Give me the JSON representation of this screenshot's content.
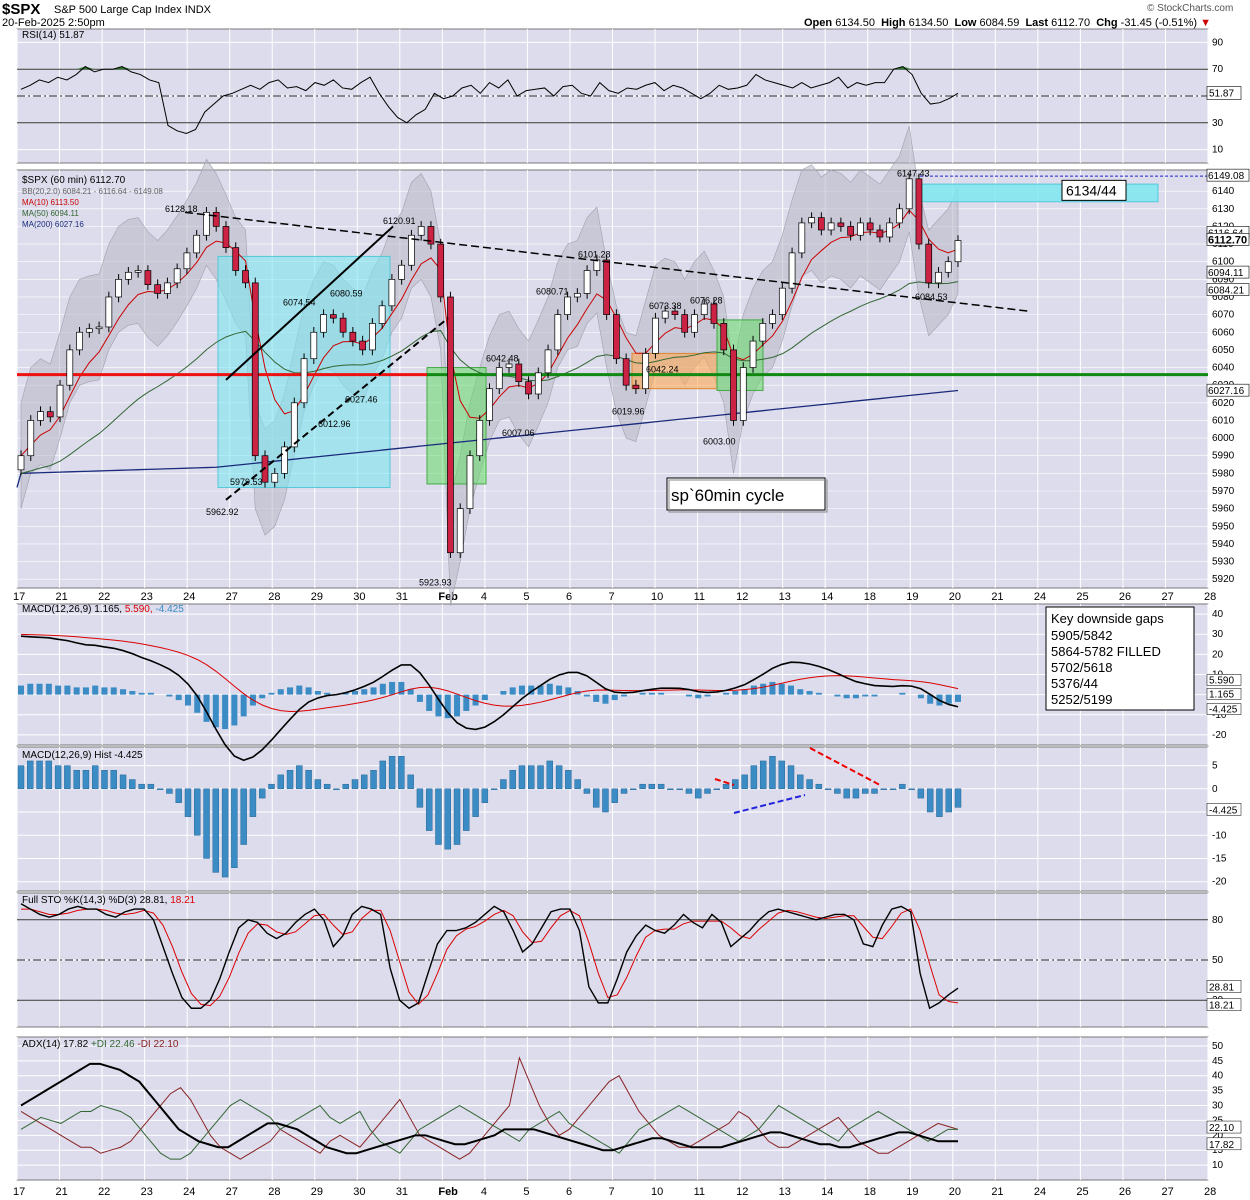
{
  "header": {
    "symbol": "$SPX",
    "name": "S&P 500 Large Cap Index",
    "exchange": "INDX",
    "timestamp": "20-Feb-2025 2:50pm",
    "open_label": "Open",
    "open": "6134.50",
    "high_label": "High",
    "high": "6134.50",
    "low_label": "Low",
    "low": "6084.59",
    "last_label": "Last",
    "last": "6112.70",
    "chg_label": "Chg",
    "chg": "-31.45 (-0.51%)",
    "watermark": "© StockCharts.com"
  },
  "colors": {
    "panel_bg": "#dcdcec",
    "grid": "#ffffff",
    "candle_up": "#ffffff",
    "candle_down": "#cc2244",
    "rsi_line": "#000000",
    "rsi_fill": "#2f7a2f",
    "ma10": "#cc0000",
    "ma50": "#336633",
    "ma200": "#1a2a7a",
    "bb_fill": "#b8b8c6",
    "red_level": "#ee1111",
    "green_level": "#118811",
    "box_cyan": "#7ee8f0",
    "box_green": "#66dd66",
    "box_orange": "#ffaa55",
    "macd_hist": "#3b8cc4",
    "sto_k": "#000000",
    "sto_d": "#dd0000",
    "adx": "#000000",
    "plus_di": "#336633",
    "minus_di": "#882222"
  },
  "xaxis": {
    "labels": [
      "17",
      "21",
      "22",
      "23",
      "24",
      "27",
      "28",
      "29",
      "30",
      "31",
      "Feb",
      "4",
      "5",
      "6",
      "7",
      "10",
      "11",
      "12",
      "13",
      "14",
      "18",
      "19",
      "20",
      "21",
      "24",
      "25",
      "26",
      "27",
      "28"
    ]
  },
  "panels": {
    "rsi": {
      "legend_name": "RSI(14)",
      "legend_value": "51.87",
      "ticks": [
        "90",
        "70",
        "50",
        "30",
        "10"
      ],
      "last_value": "51.87",
      "series": [
        55,
        58,
        62,
        60,
        64,
        62,
        66,
        72,
        68,
        70,
        70,
        72,
        68,
        66,
        62,
        60,
        28,
        24,
        22,
        25,
        38,
        44,
        50,
        52,
        55,
        58,
        55,
        60,
        62,
        56,
        57,
        54,
        60,
        58,
        62,
        56,
        55,
        60,
        64,
        52,
        42,
        34,
        30,
        36,
        40,
        52,
        48,
        50,
        56,
        58,
        52,
        60,
        56,
        62,
        50,
        54,
        55,
        56,
        50,
        57,
        58,
        52,
        50,
        60,
        54,
        52,
        56,
        55,
        58,
        60,
        54,
        58,
        56,
        52,
        48,
        52,
        58,
        55,
        56,
        58,
        66,
        62,
        60,
        58,
        56,
        60,
        56,
        58,
        60,
        64,
        56,
        60,
        58,
        60,
        60,
        70,
        72,
        66,
        52,
        44,
        45,
        48,
        52
      ]
    },
    "price": {
      "legend_name": "$SPX (60 min)",
      "legend_value": "6112.70",
      "bb_label": "BB(20,2.0)",
      "bb_values": "6084.21 - 6116.64 - 6149.08",
      "ma10_label": "MA(10)",
      "ma10_value": "6113.50",
      "ma50_label": "MA(50)",
      "ma50_value": "6094.11",
      "ma200_label": "MA(200)",
      "ma200_value": "6027.16",
      "ticks": [
        "6140",
        "6130",
        "6120",
        "6110",
        "6100",
        "6090",
        "6080",
        "6070",
        "6060",
        "6050",
        "6040",
        "6030",
        "6020",
        "6010",
        "6000",
        "5990",
        "5980",
        "5970",
        "5960",
        "5950",
        "5940",
        "5930",
        "5920"
      ],
      "right_labels": [
        "6149.08",
        "6116.64",
        "6112.70",
        "6094.11",
        "6084.21",
        "6027.16"
      ],
      "annotations": [
        "6128.18",
        "6120.91",
        "6101.28",
        "6080.71",
        "6073.38",
        "6076.28",
        "6147.43",
        "6074.54",
        "6080.59",
        "6027.46",
        "6012.96",
        "6042.48",
        "6007.06",
        "6019.96",
        "6042.24",
        "6003.00",
        "5979.53",
        "5962.92",
        "5923.93",
        "6084.53"
      ],
      "target_label": "6134/44",
      "cycle_label": "sp`60min cycle",
      "levels": {
        "red": 6036,
        "green": 6036
      }
    },
    "macd": {
      "legend_name": "MACD(12,26,9)",
      "legend_values": [
        "1.165",
        "5.590",
        "-4.425"
      ],
      "ticks": [
        "40",
        "30",
        "20",
        "10",
        "0",
        "-10",
        "-20"
      ],
      "right_labels": [
        "5.590",
        "1.165",
        "-4.425"
      ],
      "gaps_title": "Key downside gaps",
      "gaps": [
        "5905/5842",
        "5864-5782 FILLED",
        "5702/5618",
        "5376/44",
        "5252/5199"
      ]
    },
    "hist": {
      "legend_name": "MACD(12,26,9) Hist",
      "legend_value": "-4.425",
      "ticks": [
        "5",
        "0",
        "-5",
        "-10",
        "-15",
        "-20"
      ],
      "right_label": "-4.425",
      "values": [
        5,
        6,
        6,
        6,
        5,
        5,
        4,
        4,
        5,
        4,
        4,
        3,
        2,
        1,
        1,
        0,
        -1,
        -3,
        -6,
        -10,
        -15,
        -18,
        -19,
        -17,
        -12,
        -6,
        -2,
        1,
        3,
        4,
        5,
        4,
        2,
        1,
        0,
        1,
        2,
        3,
        4,
        6,
        7,
        7,
        3,
        -4,
        -9,
        -12,
        -13,
        -12,
        -9,
        -6,
        -3,
        0,
        2,
        4,
        5,
        5,
        5,
        6,
        5,
        4,
        2,
        -1,
        -4,
        -5,
        -3,
        -1,
        0,
        1,
        1,
        1,
        0,
        0,
        -1,
        -2,
        -1,
        0,
        1,
        2,
        3,
        5,
        6,
        7,
        6,
        5,
        3,
        2,
        1,
        0,
        -1,
        -2,
        -2,
        -1,
        -1,
        0,
        0,
        1,
        0,
        -2,
        -5,
        -6,
        -5,
        -4
      ]
    },
    "sto": {
      "legend_name": "Full STO %K(14,3) %D(3)",
      "legend_values": [
        "28.81",
        "18.21"
      ],
      "ticks": [
        "80",
        "50",
        "20"
      ],
      "right_labels": [
        "28.81",
        "18.21"
      ],
      "k": [
        92,
        88,
        84,
        82,
        84,
        88,
        90,
        88,
        88,
        84,
        82,
        86,
        88,
        88,
        80,
        60,
        40,
        22,
        14,
        14,
        20,
        36,
        56,
        74,
        80,
        78,
        70,
        66,
        70,
        78,
        84,
        88,
        80,
        60,
        68,
        84,
        90,
        88,
        84,
        44,
        20,
        14,
        18,
        40,
        62,
        72,
        72,
        74,
        78,
        84,
        90,
        86,
        72,
        56,
        62,
        74,
        86,
        88,
        88,
        72,
        30,
        18,
        18,
        36,
        56,
        68,
        76,
        72,
        70,
        76,
        84,
        78,
        74,
        84,
        78,
        60,
        66,
        72,
        80,
        86,
        88,
        86,
        84,
        82,
        80,
        82,
        84,
        84,
        80,
        62,
        60,
        76,
        88,
        90,
        86,
        40,
        14,
        18,
        24,
        29
      ],
      "d": [
        88,
        88,
        86,
        84,
        84,
        85,
        87,
        88,
        88,
        87,
        85,
        84,
        85,
        87,
        85,
        76,
        60,
        41,
        25,
        17,
        16,
        23,
        37,
        55,
        70,
        77,
        76,
        71,
        69,
        71,
        77,
        83,
        84,
        76,
        69,
        71,
        81,
        87,
        87,
        72,
        49,
        26,
        17,
        24,
        40,
        58,
        68,
        73,
        75,
        79,
        84,
        87,
        83,
        71,
        63,
        64,
        74,
        83,
        87,
        83,
        63,
        40,
        22,
        24,
        37,
        53,
        67,
        72,
        73,
        73,
        77,
        79,
        79,
        79,
        79,
        74,
        68,
        66,
        73,
        79,
        85,
        87,
        86,
        84,
        82,
        81,
        82,
        83,
        83,
        75,
        67,
        66,
        75,
        85,
        88,
        72,
        47,
        24,
        19,
        18
      ]
    },
    "adx": {
      "legend_name": "ADX(14)",
      "legend_values": [
        "17.82",
        "22.46",
        "22.10"
      ],
      "plus_di_label": "+DI",
      "minus_di_label": "-DI",
      "ticks": [
        "50",
        "45",
        "40",
        "35",
        "30",
        "25",
        "20",
        "15",
        "10"
      ],
      "right_labels": [
        "22.10",
        "17.82"
      ],
      "adx": [
        30,
        32,
        34,
        36,
        38,
        40,
        42,
        44,
        44,
        43,
        42,
        40,
        38,
        34,
        30,
        26,
        22,
        20,
        18,
        17,
        16,
        16,
        18,
        20,
        22,
        24,
        24,
        23,
        22,
        20,
        18,
        16,
        15,
        14,
        14,
        15,
        16,
        17,
        18,
        19,
        20,
        20,
        19,
        18,
        17,
        17,
        18,
        19,
        20,
        22,
        22,
        22,
        22,
        21,
        20,
        19,
        18,
        17,
        16,
        15,
        15,
        16,
        17,
        18,
        19,
        19,
        18,
        17,
        16,
        16,
        16,
        16,
        17,
        18,
        19,
        20,
        21,
        21,
        20,
        19,
        18,
        17,
        17,
        16,
        16,
        17,
        18,
        19,
        20,
        21,
        21,
        20,
        19,
        18,
        18,
        18
      ],
      "plus_di": [
        22,
        24,
        26,
        25,
        24,
        26,
        28,
        28,
        30,
        29,
        28,
        26,
        22,
        18,
        14,
        12,
        12,
        14,
        18,
        22,
        26,
        30,
        32,
        30,
        28,
        26,
        22,
        24,
        26,
        28,
        30,
        26,
        24,
        26,
        28,
        22,
        18,
        16,
        14,
        18,
        22,
        24,
        26,
        28,
        30,
        28,
        26,
        24,
        22,
        20,
        18,
        22,
        24,
        26,
        28,
        24,
        22,
        20,
        18,
        16,
        14,
        18,
        22,
        24,
        26,
        28,
        30,
        28,
        26,
        24,
        22,
        20,
        18,
        20,
        22,
        26,
        30,
        28,
        26,
        24,
        22,
        20,
        18,
        22,
        24,
        26,
        28,
        26,
        24,
        22,
        20,
        18,
        20,
        22,
        22
      ],
      "minus_di": [
        28,
        26,
        24,
        22,
        20,
        18,
        16,
        16,
        14,
        15,
        16,
        18,
        22,
        26,
        30,
        34,
        36,
        32,
        26,
        20,
        16,
        14,
        12,
        14,
        16,
        18,
        22,
        20,
        18,
        16,
        14,
        18,
        20,
        18,
        16,
        20,
        24,
        28,
        32,
        26,
        20,
        18,
        16,
        14,
        12,
        14,
        18,
        22,
        26,
        30,
        46,
        38,
        30,
        24,
        20,
        22,
        26,
        30,
        34,
        38,
        40,
        34,
        28,
        24,
        20,
        18,
        16,
        16,
        18,
        20,
        22,
        24,
        28,
        26,
        22,
        18,
        16,
        16,
        18,
        20,
        22,
        24,
        26,
        22,
        18,
        16,
        14,
        14,
        16,
        18,
        20,
        22,
        24,
        23,
        22
      ]
    }
  },
  "chart_data": [
    {
      "type": "candlestick",
      "title": "$SPX (60 min)",
      "x_range": [
        "17",
        "28"
      ],
      "ylim": [
        5915,
        6150
      ],
      "close": [
        5990,
        6010,
        6015,
        6012,
        6030,
        6050,
        6060,
        6062,
        6063,
        6080,
        6090,
        6094,
        6095,
        6087,
        6082,
        6088,
        6096,
        6105,
        6115,
        6128,
        6120,
        6108,
        6095,
        6088,
        5990,
        5975,
        5980,
        5995,
        6020,
        6045,
        6060,
        6070,
        6068,
        6060,
        6055,
        6050,
        6065,
        6075,
        6090,
        6098,
        6115,
        6120,
        6110,
        6080,
        5935,
        5960,
        5990,
        6010,
        6028,
        6040,
        6042,
        6032,
        6025,
        6037,
        6050,
        6070,
        6080,
        6082,
        6095,
        6101,
        6070,
        6045,
        6030,
        6028,
        6048,
        6068,
        6072,
        6070,
        6060,
        6070,
        6076,
        6065,
        6050,
        6010,
        6040,
        6055,
        6065,
        6070,
        6085,
        6105,
        6122,
        6125,
        6118,
        6122,
        6120,
        6115,
        6122,
        6118,
        6114,
        6122,
        6130,
        6147,
        6110,
        6088,
        6094,
        6100,
        6112
      ],
      "levels": {
        "hline_red": 6036,
        "hline_green": 6036
      },
      "target_zone": [
        6134,
        6144
      ]
    },
    {
      "type": "line",
      "title": "RSI(14)",
      "ylim": [
        0,
        100
      ],
      "last": 51.87
    },
    {
      "type": "bar",
      "title": "MACD(12,26,9) Hist",
      "last": -4.425
    }
  ]
}
